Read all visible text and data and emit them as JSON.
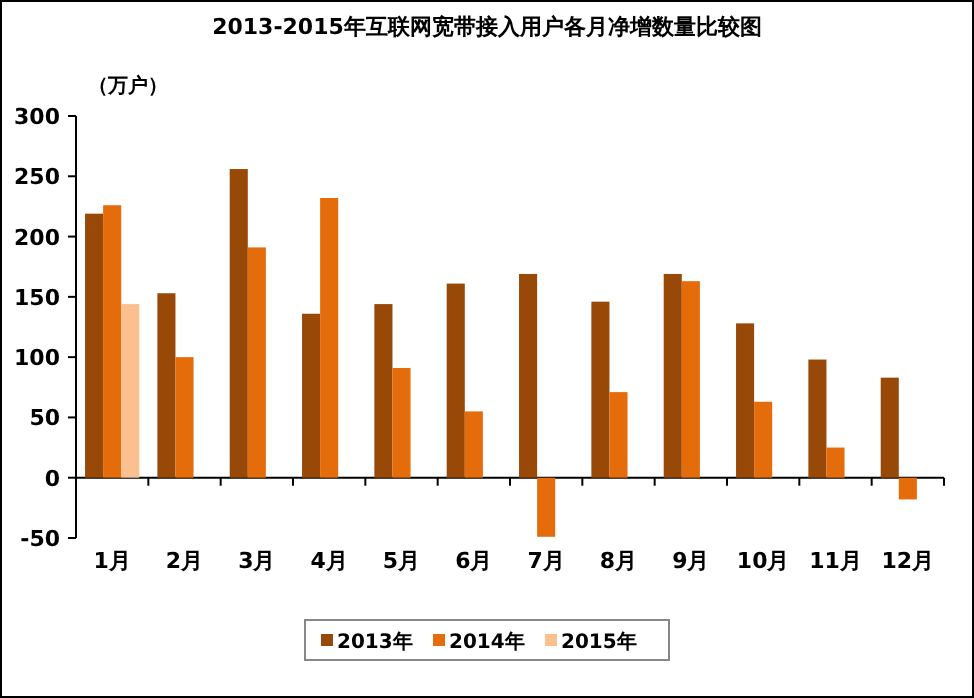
{
  "chart_data": {
    "type": "bar",
    "title": "2013-2015年互联网宽带接入用户各月净增数量比较图",
    "ylabel": "（万户）",
    "categories": [
      "1月",
      "2月",
      "3月",
      "4月",
      "5月",
      "6月",
      "7月",
      "8月",
      "9月",
      "10月",
      "11月",
      "12月"
    ],
    "series": [
      {
        "name": "2013年",
        "color": "#984807",
        "values": [
          219,
          153,
          256,
          136,
          144,
          161,
          169,
          146,
          169,
          128,
          98,
          83
        ]
      },
      {
        "name": "2014年",
        "color": "#e46c0a",
        "values": [
          226,
          100,
          191,
          232,
          91,
          55,
          -49,
          71,
          163,
          63,
          25,
          -18
        ]
      },
      {
        "name": "2015年",
        "color": "#fac090",
        "values": [
          144,
          null,
          null,
          null,
          null,
          null,
          null,
          null,
          null,
          null,
          null,
          null
        ]
      }
    ],
    "ylim": [
      -50,
      300
    ],
    "yticks": [
      -50,
      0,
      50,
      100,
      150,
      200,
      250,
      300
    ],
    "legend": "bottom"
  }
}
